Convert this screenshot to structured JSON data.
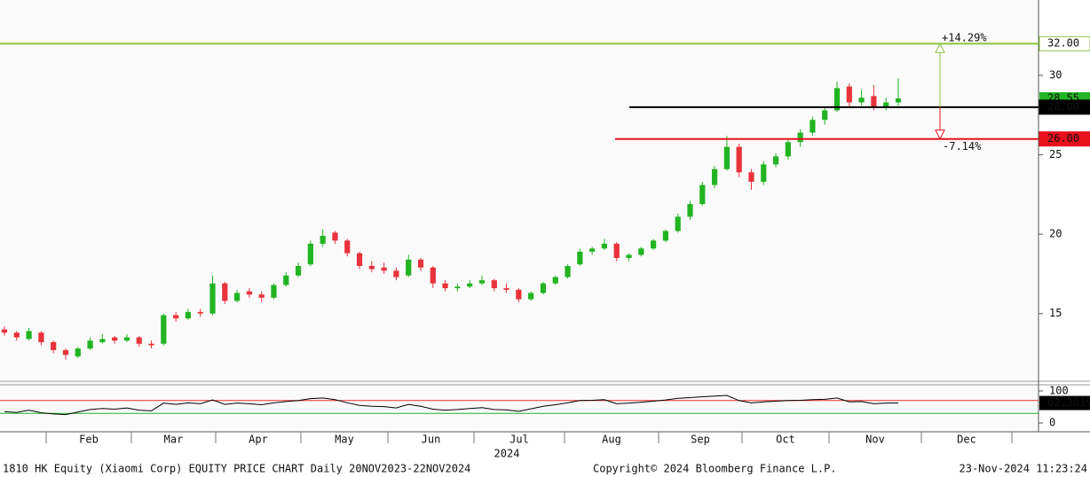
{
  "footer": {
    "left": "1810 HK Equity (Xiaomi Corp) EQUITY PRICE CHART  Daily 20NOV2023-22NOV2024",
    "center": "Copyright© 2024 Bloomberg Finance L.P.",
    "right": "23-Nov-2024 11:23:24"
  },
  "chart_data": [
    {
      "type": "candlestick",
      "up_color": "#22b422",
      "down_color": "#e8323c",
      "ylim": [
        10.85,
        34.75
      ],
      "yticks": [
        15,
        20,
        25,
        30
      ],
      "ohlc": [
        [
          14.0,
          14.2,
          13.6,
          13.8
        ],
        [
          13.8,
          13.9,
          13.3,
          13.5
        ],
        [
          13.4,
          14.1,
          13.3,
          13.9
        ],
        [
          13.8,
          13.9,
          13.0,
          13.2
        ],
        [
          13.2,
          13.3,
          12.5,
          12.7
        ],
        [
          12.7,
          12.8,
          12.1,
          12.4
        ],
        [
          12.3,
          12.9,
          12.2,
          12.8
        ],
        [
          12.8,
          13.5,
          12.7,
          13.3
        ],
        [
          13.2,
          13.7,
          13.1,
          13.4
        ],
        [
          13.5,
          13.6,
          13.1,
          13.3
        ],
        [
          13.3,
          13.7,
          13.2,
          13.5
        ],
        [
          13.5,
          13.6,
          12.9,
          13.1
        ],
        [
          13.1,
          13.3,
          12.8,
          13.0
        ],
        [
          13.1,
          15.0,
          13.0,
          14.9
        ],
        [
          14.9,
          15.1,
          14.5,
          14.7
        ],
        [
          14.7,
          15.3,
          14.6,
          15.1
        ],
        [
          15.1,
          15.3,
          14.8,
          15.0
        ],
        [
          15.0,
          17.4,
          14.9,
          16.9
        ],
        [
          16.9,
          17.0,
          15.6,
          15.8
        ],
        [
          15.8,
          16.5,
          15.7,
          16.3
        ],
        [
          16.4,
          16.6,
          16.0,
          16.2
        ],
        [
          16.2,
          16.4,
          15.7,
          16.0
        ],
        [
          16.0,
          16.9,
          15.9,
          16.8
        ],
        [
          16.8,
          17.6,
          16.7,
          17.4
        ],
        [
          17.4,
          18.2,
          17.3,
          18.0
        ],
        [
          18.1,
          19.6,
          18.0,
          19.4
        ],
        [
          19.4,
          20.3,
          19.2,
          19.9
        ],
        [
          20.1,
          20.2,
          19.4,
          19.6
        ],
        [
          19.6,
          19.7,
          18.6,
          18.8
        ],
        [
          18.8,
          18.9,
          17.8,
          18.0
        ],
        [
          18.0,
          18.3,
          17.6,
          17.8
        ],
        [
          17.9,
          18.2,
          17.5,
          17.7
        ],
        [
          17.7,
          17.9,
          17.1,
          17.3
        ],
        [
          17.4,
          18.7,
          17.3,
          18.4
        ],
        [
          18.4,
          18.5,
          17.7,
          17.9
        ],
        [
          17.9,
          18.0,
          16.6,
          16.9
        ],
        [
          16.9,
          17.1,
          16.4,
          16.6
        ],
        [
          16.6,
          16.9,
          16.4,
          16.7
        ],
        [
          16.7,
          17.1,
          16.6,
          16.9
        ],
        [
          16.9,
          17.4,
          16.8,
          17.1
        ],
        [
          17.1,
          17.2,
          16.4,
          16.6
        ],
        [
          16.6,
          16.9,
          16.3,
          16.5
        ],
        [
          16.5,
          16.6,
          15.7,
          15.9
        ],
        [
          15.9,
          16.4,
          15.8,
          16.3
        ],
        [
          16.3,
          17.0,
          16.2,
          16.9
        ],
        [
          16.9,
          17.4,
          16.8,
          17.3
        ],
        [
          17.3,
          18.1,
          17.2,
          18.0
        ],
        [
          18.1,
          19.1,
          18.0,
          18.9
        ],
        [
          18.9,
          19.2,
          18.7,
          19.1
        ],
        [
          19.1,
          19.7,
          19.0,
          19.4
        ],
        [
          19.4,
          19.5,
          18.3,
          18.5
        ],
        [
          18.5,
          18.8,
          18.3,
          18.7
        ],
        [
          18.7,
          19.2,
          18.6,
          19.1
        ],
        [
          19.1,
          19.7,
          19.0,
          19.6
        ],
        [
          19.6,
          20.3,
          19.5,
          20.2
        ],
        [
          20.2,
          21.3,
          20.1,
          21.1
        ],
        [
          21.1,
          22.1,
          20.9,
          21.9
        ],
        [
          21.9,
          23.3,
          21.8,
          23.1
        ],
        [
          23.1,
          24.3,
          22.9,
          24.1
        ],
        [
          24.1,
          26.2,
          24.0,
          25.5
        ],
        [
          25.5,
          25.7,
          23.6,
          23.9
        ],
        [
          23.9,
          24.1,
          22.8,
          23.3
        ],
        [
          23.3,
          24.6,
          23.1,
          24.4
        ],
        [
          24.4,
          25.1,
          24.2,
          24.9
        ],
        [
          24.9,
          26.0,
          24.7,
          25.8
        ],
        [
          25.8,
          26.6,
          25.5,
          26.4
        ],
        [
          26.4,
          27.4,
          26.2,
          27.2
        ],
        [
          27.2,
          28.0,
          26.9,
          27.8
        ],
        [
          27.8,
          29.6,
          27.7,
          29.2
        ],
        [
          29.3,
          29.5,
          28.0,
          28.3
        ],
        [
          28.3,
          29.1,
          28.1,
          28.6
        ],
        [
          28.7,
          29.4,
          27.8,
          28.0
        ],
        [
          28.0,
          28.6,
          27.8,
          28.3
        ],
        [
          28.3,
          29.8,
          28.1,
          28.55
        ]
      ],
      "levels": [
        {
          "value": 32,
          "label": "32.00",
          "color": "#8cc63f"
        },
        {
          "value": 28,
          "label": "28.00",
          "color": "#000000"
        },
        {
          "value": 26,
          "label": "26.00",
          "color": "#e8101c"
        }
      ],
      "annotations": [
        {
          "text": "+14.29%",
          "color": "#8cc63f"
        },
        {
          "text": "-7.14%",
          "color": "#e8101c"
        }
      ],
      "x_months": [
        "Feb",
        "Mar",
        "Apr",
        "May",
        "Jun",
        "Jul",
        "Aug",
        "Sep",
        "Oct",
        "Nov",
        "Dec"
      ],
      "x_year": "2024"
    },
    {
      "type": "line",
      "color": "#000000",
      "ylim": [
        0,
        100
      ],
      "yticks": [
        0,
        100
      ],
      "levels": [
        {
          "value": 70,
          "color": "#e83030"
        },
        {
          "value": 30,
          "color": "#22b422"
        }
      ],
      "values": [
        35,
        33,
        40,
        32,
        28,
        26,
        34,
        42,
        45,
        43,
        47,
        40,
        38,
        62,
        58,
        63,
        60,
        72,
        58,
        62,
        60,
        57,
        63,
        67,
        70,
        76,
        78,
        73,
        63,
        55,
        52,
        51,
        47,
        58,
        52,
        43,
        40,
        42,
        45,
        48,
        42,
        41,
        36,
        44,
        52,
        57,
        63,
        70,
        71,
        73,
        60,
        62,
        65,
        68,
        72,
        77,
        79,
        82,
        84,
        86,
        70,
        63,
        66,
        68,
        70,
        71,
        73,
        74,
        78,
        66,
        67,
        60,
        62,
        62.3819
      ]
    }
  ]
}
